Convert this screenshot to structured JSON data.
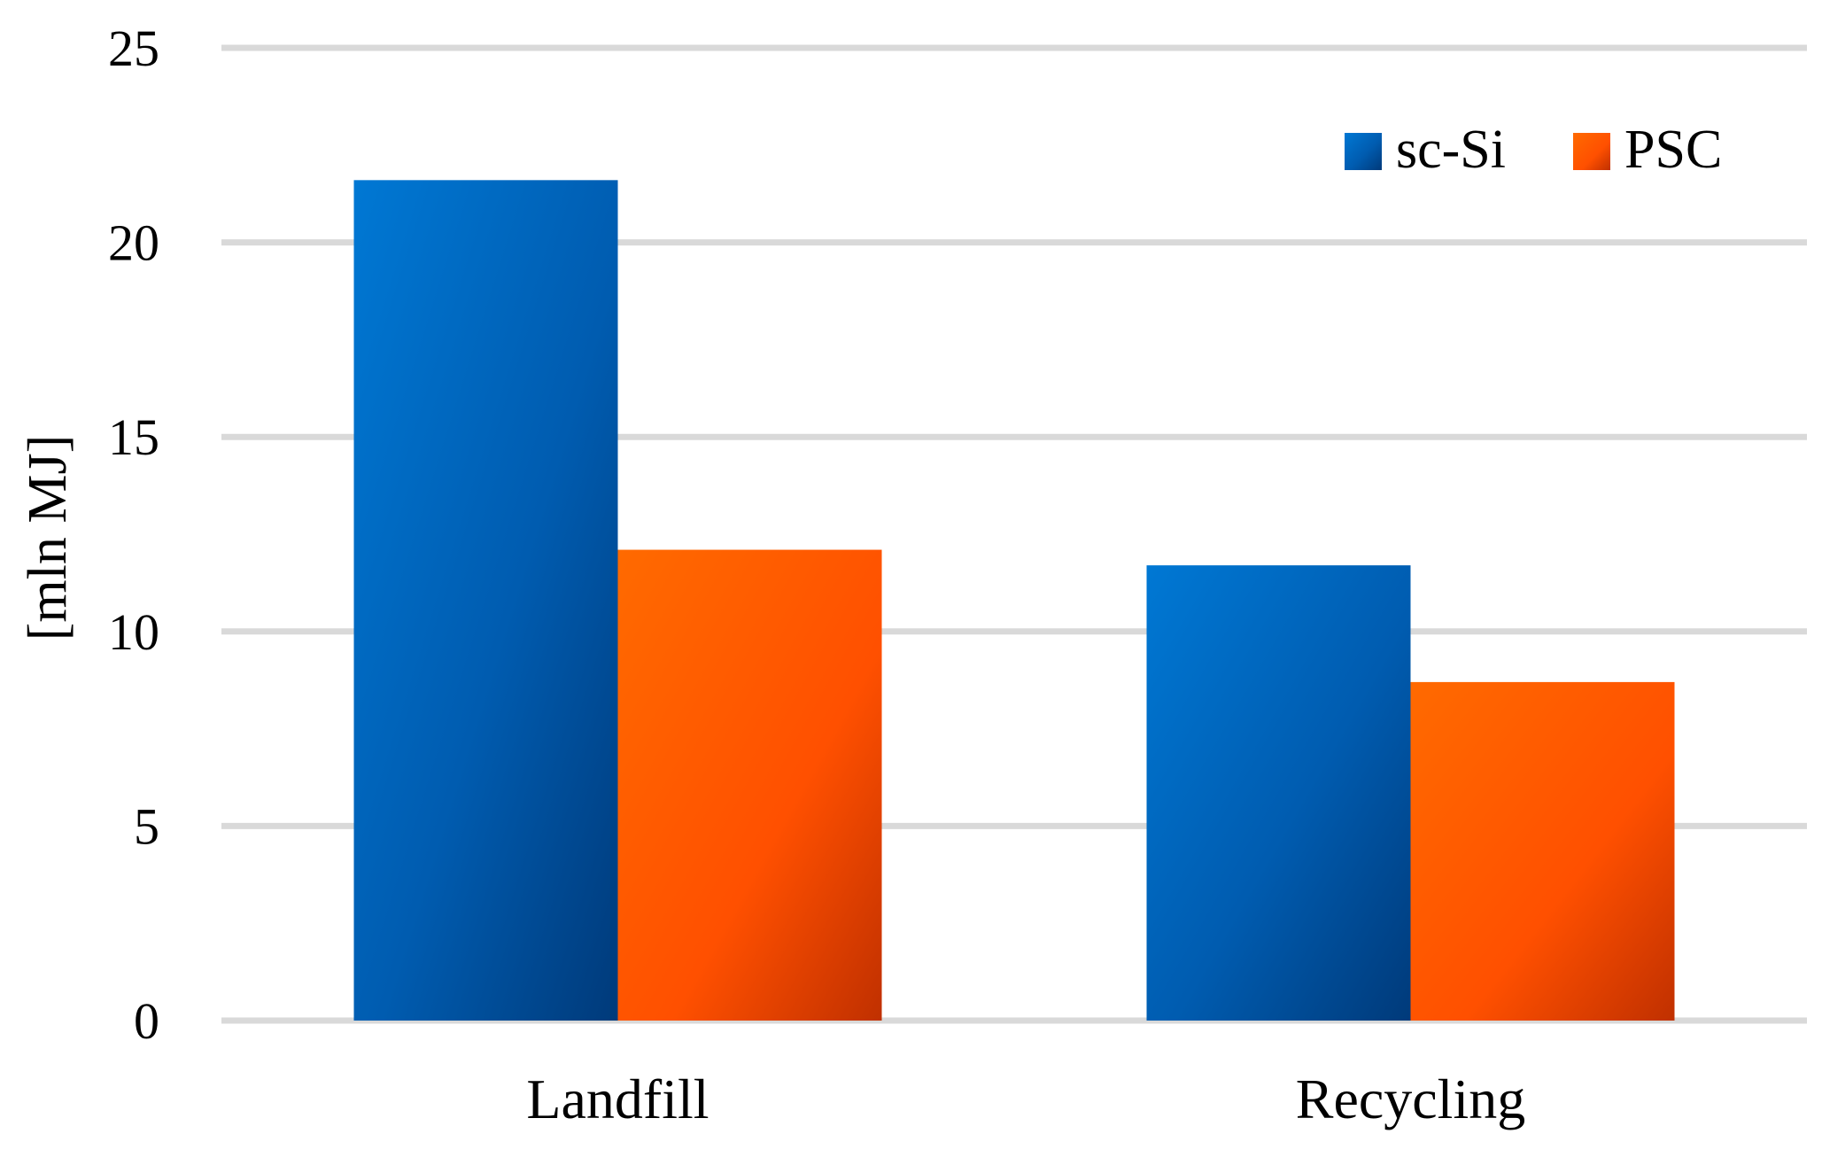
{
  "chart_data": {
    "type": "bar",
    "categories": [
      "Landfill",
      "Recycling"
    ],
    "series": [
      {
        "name": "sc-Si",
        "values": [
          21.6,
          11.7
        ],
        "color": "#0070c0"
      },
      {
        "name": "PSC",
        "values": [
          12.1,
          8.7
        ],
        "color": "#ff5500"
      }
    ],
    "title": "",
    "xlabel": "",
    "ylabel": "[mln MJ]",
    "ylim": [
      0,
      25
    ],
    "yticks": [
      0,
      5,
      10,
      15,
      20,
      25
    ],
    "grid": true,
    "legend_position": "top-right"
  }
}
